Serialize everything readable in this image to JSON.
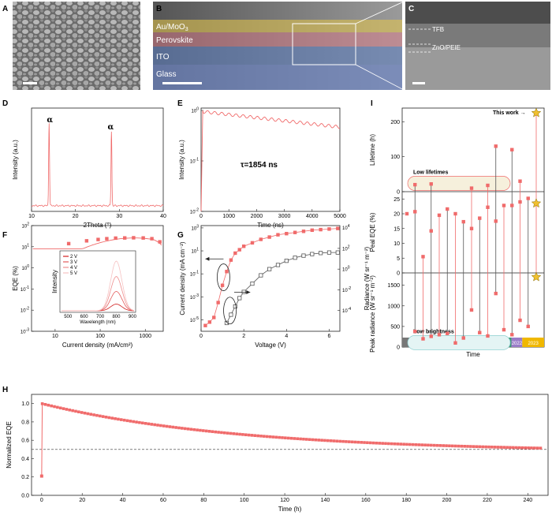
{
  "panels": {
    "A": {
      "label": "A"
    },
    "B": {
      "label": "B",
      "layers": [
        "Au/MoO",
        "Perovskite",
        "ITO",
        "Glass"
      ],
      "mo_sub": "3"
    },
    "C": {
      "label": "C",
      "labels": [
        "TFB",
        "ZnO/PEIE"
      ]
    }
  },
  "colors": {
    "marker": "#f06b6b",
    "dark": "#555555",
    "au": "#e8c84a",
    "pero": "#e87c8c",
    "ito": "#5b7fc4",
    "glass": "#6b86c9",
    "star": "#f0c030"
  },
  "chart_data": [
    {
      "id": "D",
      "label": "D",
      "type": "line",
      "xlabel": "2Theta (°)",
      "ylabel": "Intensity (a.u.)",
      "xlim": [
        10,
        40
      ],
      "xticks": [
        10,
        20,
        30,
        40
      ],
      "peaks": [
        {
          "x": 14.0,
          "label": "α"
        },
        {
          "x": 28.2,
          "label": "α"
        }
      ]
    },
    {
      "id": "E",
      "label": "E",
      "type": "line",
      "xlabel": "Time (ns)",
      "ylabel": "Intensity (a.u.)",
      "xlim": [
        0,
        5000
      ],
      "xticks": [
        0,
        1000,
        2000,
        3000,
        4000,
        5000
      ],
      "ylim_log": [
        0.01,
        1
      ],
      "yscale": "log",
      "annotation": "τ=1854 ns",
      "tau": 1854
    },
    {
      "id": "F",
      "label": "F",
      "type": "line",
      "xlabel": "Current density (mA/cm²)",
      "ylabel": "EQE (%)",
      "xscale": "log",
      "yscale": "log",
      "xlim_log": [
        3,
        2500
      ],
      "ylim_log": [
        0.001,
        100
      ],
      "xticks": [
        10,
        100,
        1000
      ],
      "points": [
        {
          "x": 20,
          "y": 14
        },
        {
          "x": 50,
          "y": 19
        },
        {
          "x": 90,
          "y": 22
        },
        {
          "x": 140,
          "y": 24
        },
        {
          "x": 220,
          "y": 25.5
        },
        {
          "x": 350,
          "y": 26
        },
        {
          "x": 550,
          "y": 26.5
        },
        {
          "x": 900,
          "y": 26
        },
        {
          "x": 1400,
          "y": 24
        },
        {
          "x": 2100,
          "y": 17
        }
      ],
      "inset": {
        "xlabel": "Wavelength (nm)",
        "ylabel": "Intensity",
        "xticks": [
          500,
          600,
          700,
          800,
          900
        ],
        "legend": [
          "2 V",
          "3 V",
          "4 V",
          "5 V"
        ],
        "peak_nm": 800,
        "amps": [
          0.12,
          0.35,
          0.62,
          0.9
        ]
      }
    },
    {
      "id": "G",
      "label": "G",
      "type": "line",
      "xlabel": "Voltage (V)",
      "ylabel": "Current density (mA cm⁻²)",
      "ylabel2": "Radiance (W sr⁻¹ m⁻²)",
      "xlim": [
        0,
        6.5
      ],
      "xticks": [
        0,
        2,
        4,
        6
      ],
      "series": [
        {
          "name": "Current density",
          "x": [
            0.2,
            0.4,
            0.6,
            0.8,
            1.0,
            1.2,
            1.4,
            1.6,
            1.8,
            2.0,
            2.4,
            2.8,
            3.2,
            3.6,
            4.0,
            4.4,
            4.8,
            5.2,
            5.6,
            6.0,
            6.4
          ],
          "logy": [
            -5.5,
            -5.2,
            -4.8,
            -3.5,
            -2,
            -0.8,
            0.2,
            0.8,
            1.1,
            1.4,
            1.7,
            2.0,
            2.2,
            2.4,
            2.5,
            2.6,
            2.7,
            2.8,
            2.85,
            2.9,
            2.95
          ]
        },
        {
          "name": "Radiance",
          "x": [
            1.2,
            1.4,
            1.6,
            1.8,
            2.0,
            2.4,
            2.8,
            3.2,
            3.6,
            4.0,
            4.4,
            4.8,
            5.2,
            5.6,
            6.0,
            6.4
          ],
          "logy": [
            -5.2,
            -4.4,
            -3.6,
            -2.8,
            -2.2,
            -1.4,
            -0.6,
            0,
            0.4,
            0.8,
            1.1,
            1.3,
            1.45,
            1.55,
            1.6,
            1.6
          ]
        }
      ]
    },
    {
      "id": "I",
      "label": "I",
      "type": "scatter",
      "xlabel": "Time",
      "ylabel_top": "Lifetime (h)",
      "ylabel_mid": "Peal EQE (%)",
      "ylabel_bot": "Peak radiance (W sr⁻¹ m⁻²)",
      "this_work": "This work",
      "low_lifetimes": "Low lifetimes",
      "low_brightness": "Low brightness",
      "years": [
        "2018",
        "2019",
        "2020",
        "2021",
        "2022",
        "2023"
      ],
      "year_colors": [
        "#777777",
        "#f08a94",
        "#2b6cc0",
        "#3b9a72",
        "#9a7cc8",
        "#f0b800"
      ],
      "year_widths": [
        2,
        5,
        1,
        2,
        1,
        2
      ],
      "lifetime_ticks": [
        0,
        100,
        200
      ],
      "eqe_ticks": [
        0,
        5,
        10,
        15,
        20,
        25
      ],
      "rad_ticks": [
        0,
        500,
        1000,
        1500
      ],
      "devices": [
        {
          "life": null,
          "eqe": 20.0,
          "rad": null
        },
        {
          "life": 20,
          "eqe": 20.7,
          "rad": 380
        },
        {
          "life": null,
          "eqe": 5.5,
          "rad": 200
        },
        {
          "life": 22,
          "eqe": 14.2,
          "rad": 260
        },
        {
          "life": null,
          "eqe": 19.5,
          "rad": 300
        },
        {
          "life": null,
          "eqe": 21.6,
          "rad": 330
        },
        {
          "life": null,
          "eqe": 20.0,
          "rad": 100
        },
        {
          "life": null,
          "eqe": 17.3,
          "rad": 220
        },
        {
          "life": 10,
          "eqe": 15.0,
          "rad": 900
        },
        {
          "life": null,
          "eqe": 18.5,
          "rad": 350
        },
        {
          "life": 18,
          "eqe": 22.2,
          "rad": 270
        },
        {
          "life": 130,
          "eqe": 17.5,
          "rad": 1300
        },
        {
          "life": null,
          "eqe": 22.8,
          "rad": 420
        },
        {
          "life": 120,
          "eqe": 22.8,
          "rad": 300
        },
        {
          "life": 30,
          "eqe": 24.0,
          "rad": 650
        },
        {
          "life": null,
          "eqe": 25.2,
          "rad": 500
        },
        {
          "life": 225,
          "eqe": 23.5,
          "rad": 1700,
          "this_work": true
        }
      ]
    },
    {
      "id": "H",
      "label": "H",
      "type": "scatter",
      "xlabel": "Time (h)",
      "ylabel": "Normalized EQE",
      "xlim": [
        -5,
        250
      ],
      "ylim": [
        0,
        1.1
      ],
      "xticks": [
        0,
        20,
        40,
        60,
        80,
        100,
        120,
        140,
        160,
        180,
        200,
        220,
        240
      ],
      "yticks": [
        0.0,
        0.2,
        0.4,
        0.6,
        0.8,
        1.0
      ],
      "reference_line": 0.5,
      "start_value": 0.21,
      "initial_value": 1.0,
      "end_time": 247,
      "end_value": 0.49
    }
  ]
}
